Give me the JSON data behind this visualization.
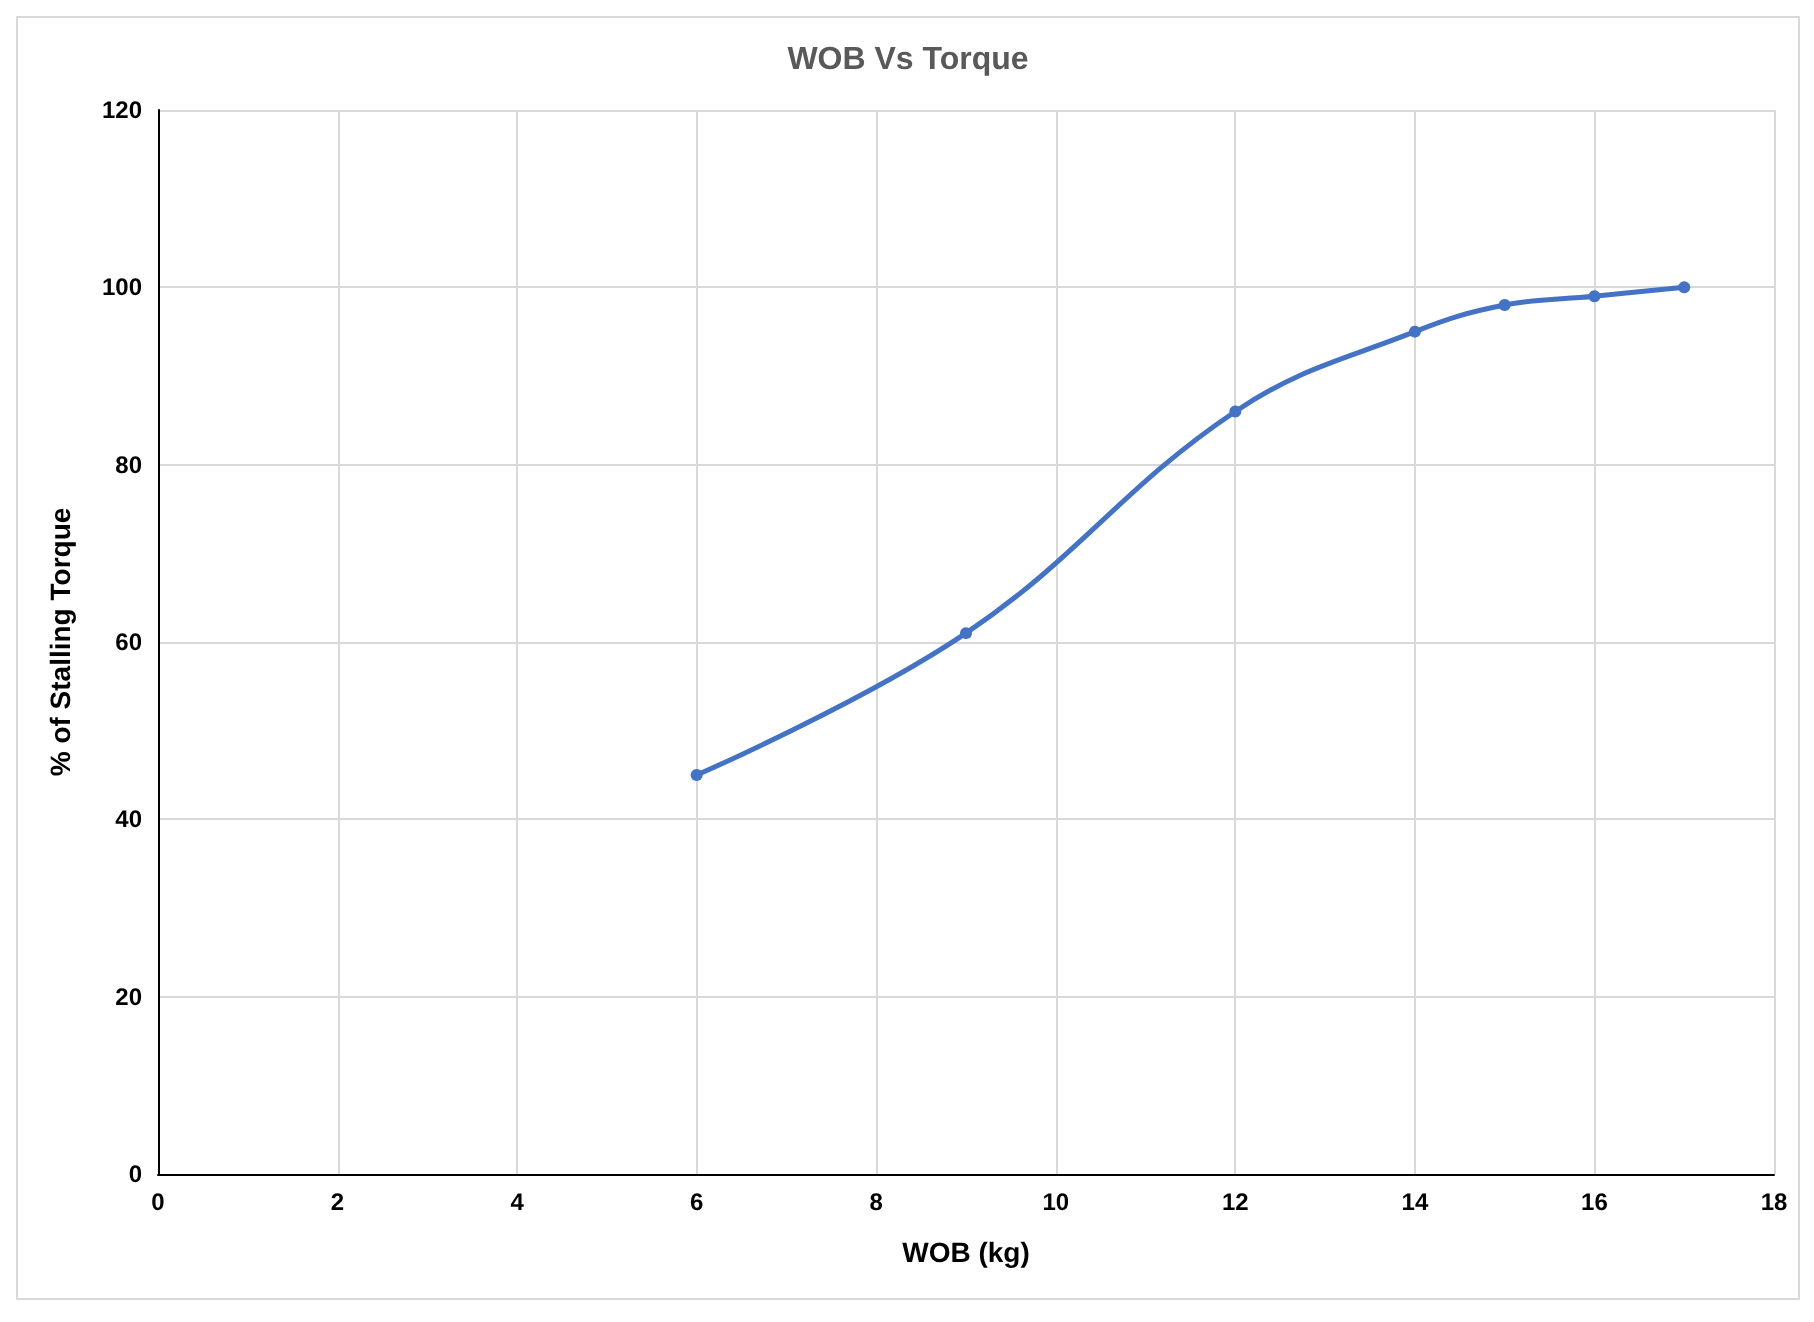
{
  "chart_data": {
    "type": "line",
    "title": "WOB Vs Torque",
    "xlabel": "WOB (kg)",
    "ylabel": "% of Stalling Torque",
    "x": [
      6,
      9,
      12,
      14,
      15,
      16,
      17
    ],
    "series": [
      {
        "color": "#4472c4",
        "values": [
          45,
          61,
          86,
          95,
          98,
          99,
          100
        ]
      }
    ],
    "xlim": [
      0,
      18
    ],
    "xticks": [
      0,
      2,
      4,
      6,
      8,
      10,
      12,
      14,
      16,
      18
    ],
    "ylim": [
      0,
      120
    ],
    "yticks": [
      0,
      20,
      40,
      60,
      80,
      100,
      120
    ],
    "grid": true,
    "marker": "circle",
    "line_style": "solid"
  }
}
